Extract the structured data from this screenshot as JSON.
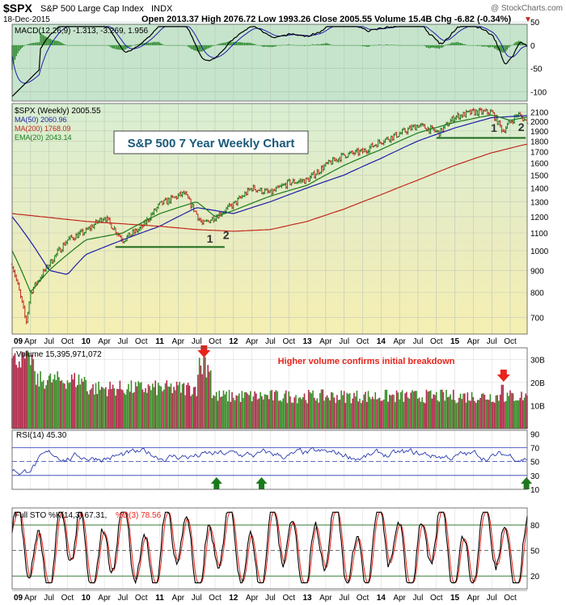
{
  "header": {
    "symbol": "$SPX",
    "name": "S&P 500 Large Cap Index",
    "exchange": "INDX",
    "copyright": "@ StockCharts.com",
    "date": "18-Dec-2015",
    "quote": "Open 2013.37  High 2076.72  Low 1993.26  Close 2005.55  Volume 15.4B  Chg -6.82 (-0.34%)",
    "down_marker": "▼"
  },
  "chart_data": [
    {
      "type": "line",
      "panel": "MACD",
      "legend": "MACD(12,26,9) -1.313, -3.269, 1.956",
      "ylim": [
        -120,
        45
      ],
      "y_ticks": [
        "50",
        "0",
        "-50",
        "-100"
      ],
      "colors": {
        "macd": "#000000",
        "signal": "#1e1ea8",
        "histogram": "#2e8b2e",
        "background": "#c8e6cf"
      }
    },
    {
      "type": "line",
      "panel": "Price",
      "title": "S&P 500 7 Year Weekly Chart",
      "legend": [
        {
          "text": "$SPX (Weekly) 2005.55",
          "color": "#000000"
        },
        {
          "text": "MA(50) 2060.96",
          "color": "#1e1ea8"
        },
        {
          "text": "MA(200) 1768.09",
          "color": "#c0281e"
        },
        {
          "text": "EMA(20) 2043.14",
          "color": "#1a7a1a"
        }
      ],
      "scale": "log",
      "ylim": [
        640,
        2200
      ],
      "y_ticks": [
        "2100",
        "2000",
        "1900",
        "1800",
        "1700",
        "1600",
        "1500",
        "1400",
        "1300",
        "1200",
        "1100",
        "1000",
        "900",
        "800",
        "700"
      ],
      "x_ticks": [
        "09",
        "Apr",
        "Jul",
        "Oct",
        "10",
        "Apr",
        "Jul",
        "Oct",
        "11",
        "Apr",
        "Jul",
        "Oct",
        "12",
        "Apr",
        "Jul",
        "Oct",
        "13",
        "Apr",
        "Jul",
        "Oct",
        "14",
        "Apr",
        "Jul",
        "Oct",
        "15",
        "Apr",
        "Jul",
        "Oct"
      ],
      "series": [
        {
          "name": "$SPX",
          "x": [
            2009.0,
            2009.19,
            2009.25,
            2009.5,
            2009.75,
            2010.0,
            2010.25,
            2010.5,
            2010.75,
            2011.0,
            2011.33,
            2011.58,
            2011.75,
            2012.0,
            2012.25,
            2012.5,
            2012.75,
            2013.0,
            2013.25,
            2013.5,
            2013.75,
            2014.0,
            2014.25,
            2014.5,
            2014.79,
            2015.0,
            2015.25,
            2015.5,
            2015.65,
            2015.85,
            2015.96
          ],
          "values": [
            930,
            680,
            800,
            930,
            1060,
            1110,
            1200,
            1060,
            1130,
            1280,
            1360,
            1150,
            1200,
            1280,
            1400,
            1360,
            1440,
            1460,
            1580,
            1670,
            1700,
            1800,
            1870,
            1960,
            1880,
            2050,
            2100,
            2100,
            1900,
            2080,
            2005
          ]
        },
        {
          "name": "MA(50)",
          "x": [
            2009.0,
            2009.5,
            2009.75,
            2010.0,
            2010.5,
            2011.0,
            2011.5,
            2012.0,
            2012.5,
            2013.0,
            2013.5,
            2014.0,
            2014.5,
            2015.0,
            2015.5,
            2015.96
          ],
          "values": [
            1200,
            900,
            880,
            980,
            1060,
            1140,
            1260,
            1220,
            1300,
            1400,
            1500,
            1640,
            1800,
            1930,
            2040,
            2061
          ]
        },
        {
          "name": "MA(200)",
          "x": [
            2009.0,
            2010.0,
            2011.0,
            2011.5,
            2012.0,
            2012.5,
            2013.0,
            2013.5,
            2014.0,
            2014.5,
            2015.0,
            2015.5,
            2015.96
          ],
          "values": [
            1220,
            1170,
            1140,
            1120,
            1110,
            1120,
            1170,
            1250,
            1350,
            1460,
            1580,
            1690,
            1768
          ]
        },
        {
          "name": "EMA(20)",
          "x": [
            2009.0,
            2009.25,
            2009.5,
            2010.0,
            2010.5,
            2011.0,
            2011.5,
            2011.75,
            2012.0,
            2012.5,
            2013.0,
            2013.5,
            2014.0,
            2014.5,
            2015.0,
            2015.5,
            2015.75,
            2015.96
          ],
          "values": [
            1000,
            800,
            900,
            1060,
            1100,
            1220,
            1300,
            1200,
            1240,
            1340,
            1420,
            1580,
            1720,
            1880,
            1990,
            2070,
            2010,
            2043
          ]
        }
      ],
      "annotations": [
        {
          "text": "1",
          "near": "Aug 2011 low"
        },
        {
          "text": "2",
          "near": "Oct 2011 low"
        },
        {
          "text": "1",
          "near": "Aug 2015 low"
        },
        {
          "text": "2",
          "near": "Oct 2015 low"
        }
      ],
      "support_lines": [
        {
          "from": 2010.4,
          "to": 2011.88,
          "y": 1020
        },
        {
          "from": 2014.75,
          "to": 2015.96,
          "y": 1830
        }
      ],
      "colors": {
        "up": "#1a7a1a",
        "down": "#c0281e",
        "background": "#e8ecc0"
      }
    },
    {
      "type": "bar",
      "panel": "Volume",
      "legend": "Volume 15,395,971,072",
      "annotation": "Higher volume confirms initial breakdown",
      "ylim": [
        0,
        35
      ],
      "y_ticks": [
        "30B",
        "20B",
        "10B"
      ],
      "arrows": [
        {
          "x": 2011.6,
          "dir": "down"
        },
        {
          "x": 2015.66,
          "dir": "down"
        }
      ],
      "colors": {
        "up": "#3c8c2a",
        "down": "#b02a4a",
        "annotation": "#e8231a"
      }
    },
    {
      "type": "line",
      "panel": "RSI",
      "legend": "RSI(14) 45.30",
      "ylim": [
        10,
        95
      ],
      "y_ticks": [
        "90",
        "70",
        "50",
        "30",
        "10"
      ],
      "levels": [
        70,
        50,
        30
      ],
      "arrows": [
        {
          "x": 2011.77,
          "dir": "up"
        },
        {
          "x": 2012.38,
          "dir": "up"
        },
        {
          "x": 2015.97,
          "dir": "up"
        }
      ],
      "colors": {
        "line": "#2a3ab0",
        "arrow": "#1a7a1a"
      }
    },
    {
      "type": "line",
      "panel": "Full STO",
      "legend": [
        {
          "text": "Full STO %K(14,3) 67.31,",
          "color": "#000000"
        },
        {
          "text": "%D(3) 78.56",
          "color": "#e8231a"
        }
      ],
      "ylim": [
        5,
        100
      ],
      "y_ticks": [
        "80",
        "50",
        "20"
      ],
      "levels": [
        80,
        50,
        20
      ],
      "colors": {
        "k": "#000000",
        "d": "#e8231a"
      }
    }
  ]
}
